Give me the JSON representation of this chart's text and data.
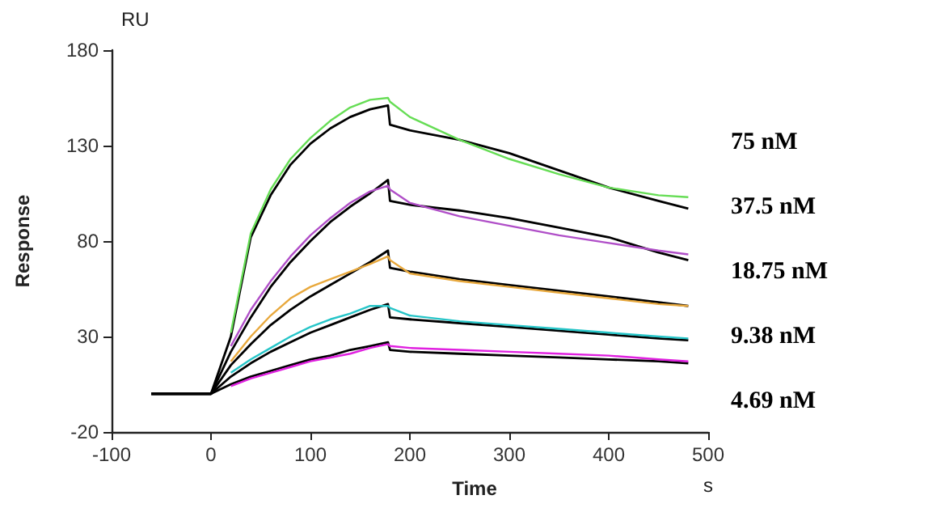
{
  "chart_data": {
    "type": "line",
    "xlabel": "Time",
    "ylabel": "Response",
    "annotations": [
      "RU",
      "s",
      "75 nM",
      "37.5 nM",
      "18.75 nM",
      "9.38 nM",
      "4.69 nM"
    ],
    "x": [
      -60,
      0,
      20,
      40,
      60,
      80,
      100,
      120,
      140,
      160,
      178,
      180,
      200,
      250,
      300,
      350,
      400,
      450,
      480
    ],
    "xlim": [
      -100,
      500
    ],
    "xticks": [
      -100,
      0,
      100,
      200,
      300,
      400,
      500
    ],
    "ylim": [
      -20,
      180
    ],
    "yticks": [
      -20,
      30,
      80,
      130,
      180
    ],
    "grid": false,
    "marker": "none",
    "line_style": "solid",
    "series": [
      {
        "color": "#000000",
        "values": [
          0,
          0,
          30,
          82,
          104,
          120,
          131,
          139,
          145,
          149,
          151,
          141,
          138,
          133,
          126,
          117,
          108,
          101,
          97
        ]
      },
      {
        "color": "#000000",
        "values": [
          0,
          0,
          22,
          40,
          56,
          69,
          80,
          90,
          98,
          105,
          112,
          101,
          99,
          96,
          92,
          87,
          82,
          74,
          70
        ]
      },
      {
        "color": "#000000",
        "values": [
          0,
          0,
          15,
          26,
          36,
          44,
          51,
          57,
          63,
          69,
          75,
          66,
          64,
          60,
          57,
          54,
          51,
          48,
          46
        ]
      },
      {
        "color": "#000000",
        "values": [
          0,
          0,
          9,
          16,
          22,
          27,
          32,
          36,
          40,
          44,
          47,
          40,
          39,
          37,
          35,
          33,
          31,
          29,
          28
        ]
      },
      {
        "color": "#000000",
        "values": [
          0,
          0,
          5,
          9,
          12,
          15,
          18,
          20,
          23,
          25,
          27,
          23,
          22,
          21,
          20,
          19,
          18,
          17,
          16
        ]
      },
      {
        "color": "#66dd55",
        "values": [
          null,
          null,
          32,
          84,
          107,
          123,
          134,
          143,
          150,
          154,
          155,
          153,
          145,
          133,
          123,
          115,
          108,
          104,
          103
        ]
      },
      {
        "color": "#b04fc8",
        "values": [
          null,
          null,
          25,
          44,
          59,
          72,
          83,
          92,
          100,
          106,
          109,
          107,
          100,
          93,
          88,
          83,
          79,
          75,
          73
        ]
      },
      {
        "color": "#e8a83c",
        "values": [
          null,
          null,
          17,
          30,
          41,
          50,
          56,
          60,
          64,
          68,
          72,
          70,
          63,
          59,
          56,
          53,
          50,
          47,
          46
        ]
      },
      {
        "color": "#26c5c8",
        "values": [
          null,
          null,
          11,
          18,
          24,
          30,
          35,
          39,
          42,
          46,
          46,
          45,
          41,
          38,
          36,
          34,
          32,
          30,
          29
        ]
      },
      {
        "color": "#e020e0",
        "values": [
          null,
          null,
          4,
          8,
          11,
          14,
          17,
          19,
          21,
          24,
          26,
          25,
          24,
          23,
          22,
          21,
          20,
          18,
          17
        ]
      }
    ]
  }
}
